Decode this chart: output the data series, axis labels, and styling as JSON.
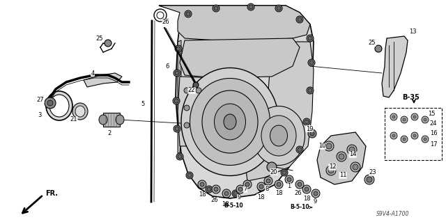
{
  "bg_color": "#ffffff",
  "diagram_code": "S9V4-A1700",
  "transmission_color": "#e0e0e0",
  "transmission_dark": "#c0c0c0",
  "transmission_darker": "#a8a8a8",
  "line_color": "#000000",
  "label_fontsize": 6,
  "b35_label": "B-35",
  "b510_label": "B-5-10",
  "fr_label": "FR.",
  "part_numbers": [
    "27",
    "4",
    "3",
    "21",
    "2",
    "25",
    "5",
    "6",
    "26",
    "22",
    "18",
    "7",
    "9",
    "8",
    "1",
    "20",
    "10",
    "12",
    "11",
    "14",
    "19",
    "24",
    "16",
    "17",
    "23",
    "13",
    "15"
  ]
}
